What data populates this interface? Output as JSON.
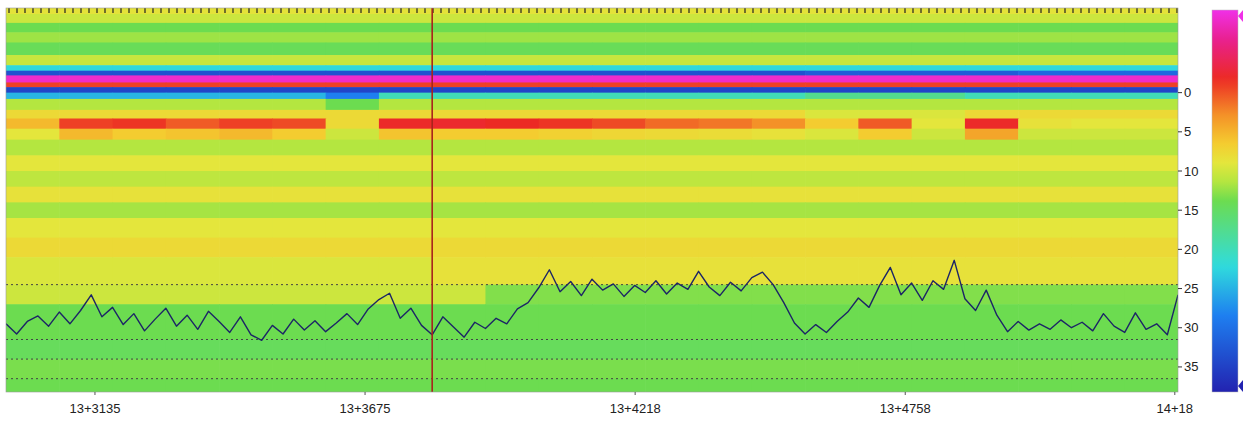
{
  "chart_data": {
    "type": "heatmap",
    "xlim": [
      0,
      22
    ],
    "xticks": [
      {
        "value": 1.67,
        "label": "13+3135"
      },
      {
        "value": 6.74,
        "label": "13+3675"
      },
      {
        "value": 11.81,
        "label": "13+4218"
      },
      {
        "value": 16.88,
        "label": "13+4758"
      },
      {
        "value": 21.94,
        "label": "14+18"
      }
    ],
    "ylim": [
      -10.8,
      38.2
    ],
    "yticks": [
      0,
      5,
      10,
      15,
      20,
      25,
      30,
      35
    ],
    "color_range": [
      -1,
      1
    ],
    "row_edges": [
      -10.8,
      -8.9,
      -7.7,
      -6.4,
      -4.8,
      -3.5,
      -2.8,
      -2.2,
      -1.3,
      -0.7,
      0.0,
      0.8,
      2.2,
      3.3,
      4.6,
      6.0,
      8.0,
      10.0,
      12.0,
      14.0,
      16.0,
      18.5,
      21.0,
      24.5,
      27.0,
      31.5,
      34.0,
      36.5,
      38.2
    ],
    "cells": [
      [
        0.15,
        0.15,
        0.15,
        0.15,
        0.15,
        0.15,
        0.15,
        0.15,
        0.15,
        0.15,
        0.15,
        0.15,
        0.15,
        0.15,
        0.15,
        0.15,
        0.15,
        0.15,
        0.15,
        0.15,
        0.15,
        0.15
      ],
      [
        0,
        0,
        0,
        0,
        0,
        0,
        0,
        0,
        0,
        0,
        0,
        0,
        0,
        0,
        0,
        0,
        0,
        0,
        0,
        0,
        0,
        0
      ],
      [
        0.07,
        0.07,
        0.07,
        0.07,
        0.07,
        0.07,
        0.07,
        0.07,
        0.07,
        0.07,
        0.07,
        0.07,
        0.07,
        0.07,
        0.07,
        0.07,
        0.07,
        0.07,
        0.07,
        0.07,
        0.07,
        0.07
      ],
      [
        -0.02,
        -0.02,
        -0.02,
        -0.02,
        -0.02,
        -0.02,
        -0.02,
        -0.02,
        -0.02,
        -0.02,
        -0.02,
        -0.02,
        -0.02,
        -0.02,
        -0.02,
        -0.02,
        -0.02,
        -0.02,
        -0.02,
        -0.02,
        -0.02,
        -0.02
      ],
      [
        0.14,
        0.14,
        0.14,
        0.14,
        0.14,
        0.14,
        0.14,
        0.14,
        0.14,
        0.14,
        0.14,
        0.14,
        0.14,
        0.14,
        0.14,
        0.14,
        0.14,
        0.14,
        0.14,
        0.14,
        0.14,
        0.14
      ],
      [
        -0.35,
        -0.35,
        -0.35,
        -0.35,
        -0.35,
        -0.35,
        -0.35,
        -0.35,
        -0.35,
        -0.35,
        -0.35,
        -0.35,
        -0.35,
        -0.35,
        -0.35,
        -0.35,
        -0.35,
        -0.35,
        -0.35,
        -0.35,
        -0.35,
        -0.35
      ],
      [
        -0.8,
        -0.8,
        -0.8,
        -0.8,
        -0.8,
        -0.8,
        -0.8,
        -0.8,
        -0.8,
        -0.8,
        -0.8,
        -0.8,
        -0.8,
        -0.8,
        -0.8,
        -0.75,
        -0.75,
        -0.75,
        -0.75,
        -0.7,
        -0.7,
        -0.7
      ],
      [
        0.95,
        0.95,
        0.95,
        0.95,
        0.95,
        0.95,
        0.95,
        0.95,
        0.95,
        0.95,
        0.95,
        0.95,
        0.95,
        0.95,
        0.95,
        0.95,
        0.95,
        0.95,
        0.95,
        0.95,
        0.95,
        0.95
      ],
      [
        0.6,
        0.6,
        0.6,
        0.6,
        0.6,
        0.6,
        0.6,
        0.6,
        0.6,
        0.6,
        0.6,
        0.6,
        0.6,
        0.6,
        0.6,
        0.6,
        0.6,
        0.6,
        0.6,
        0.6,
        0.6,
        0.6
      ],
      [
        -0.85,
        -0.85,
        -0.85,
        -0.85,
        -0.85,
        -0.85,
        -0.85,
        -0.85,
        -0.85,
        -0.85,
        -0.85,
        -0.85,
        -0.85,
        -0.85,
        -0.85,
        -0.85,
        -0.85,
        -0.85,
        -0.85,
        -0.85,
        -0.85,
        -0.85
      ],
      [
        -0.45,
        -0.45,
        -0.45,
        -0.45,
        -0.45,
        -0.45,
        -0.6,
        -0.25,
        -0.25,
        -0.25,
        -0.25,
        -0.25,
        -0.25,
        -0.25,
        -0.25,
        -0.15,
        -0.15,
        -0.15,
        -0.25,
        -0.25,
        -0.25,
        -0.25
      ],
      [
        0.1,
        0.1,
        0.1,
        0.1,
        0.1,
        0.1,
        0,
        0.1,
        0.1,
        0.1,
        0.1,
        0.1,
        0.1,
        0.1,
        0.1,
        0.1,
        0.1,
        0.1,
        0.1,
        0.1,
        0.1,
        0.1
      ],
      [
        0.25,
        0.25,
        0.25,
        0.25,
        0.25,
        0.25,
        0.25,
        0.25,
        0.25,
        0.25,
        0.25,
        0.25,
        0.25,
        0.25,
        0.25,
        0.18,
        0.18,
        0.18,
        0.25,
        0.25,
        0.25,
        0.25
      ],
      [
        0.35,
        0.6,
        0.62,
        0.55,
        0.6,
        0.58,
        0.25,
        0.65,
        0.66,
        0.64,
        0.62,
        0.58,
        0.52,
        0.5,
        0.45,
        0.3,
        0.55,
        0.2,
        0.65,
        0.22,
        0.2,
        0.2
      ],
      [
        0.2,
        0.35,
        0.3,
        0.32,
        0.35,
        0.3,
        0.15,
        0.32,
        0.3,
        0.3,
        0.28,
        0.26,
        0.25,
        0.24,
        0.22,
        0.18,
        0.3,
        0.15,
        0.4,
        0.15,
        0.15,
        0.15
      ],
      [
        0.1,
        0.1,
        0.1,
        0.1,
        0.1,
        0.1,
        0.1,
        0.1,
        0.1,
        0.1,
        0.1,
        0.1,
        0.1,
        0.1,
        0.1,
        0.1,
        0.1,
        0.1,
        0.1,
        0.1,
        0.1,
        0.1
      ],
      [
        0.2,
        0.2,
        0.2,
        0.2,
        0.2,
        0.2,
        0.2,
        0.2,
        0.2,
        0.2,
        0.2,
        0.2,
        0.2,
        0.2,
        0.2,
        0.2,
        0.2,
        0.2,
        0.2,
        0.2,
        0.2,
        0.2
      ],
      [
        0.12,
        0.12,
        0.12,
        0.12,
        0.12,
        0.12,
        0.12,
        0.12,
        0.12,
        0.12,
        0.12,
        0.12,
        0.12,
        0.12,
        0.12,
        0.12,
        0.12,
        0.12,
        0.12,
        0.12,
        0.12,
        0.12
      ],
      [
        0.22,
        0.22,
        0.22,
        0.22,
        0.22,
        0.22,
        0.22,
        0.22,
        0.22,
        0.22,
        0.22,
        0.22,
        0.22,
        0.22,
        0.22,
        0.22,
        0.22,
        0.22,
        0.22,
        0.22,
        0.22,
        0.22
      ],
      [
        0.08,
        0.08,
        0.08,
        0.08,
        0.08,
        0.08,
        0.08,
        0.08,
        0.08,
        0.08,
        0.08,
        0.08,
        0.08,
        0.08,
        0.08,
        0.08,
        0.08,
        0.08,
        0.08,
        0.08,
        0.08,
        0.08
      ],
      [
        0.2,
        0.2,
        0.2,
        0.2,
        0.2,
        0.2,
        0.2,
        0.2,
        0.2,
        0.2,
        0.2,
        0.2,
        0.2,
        0.2,
        0.2,
        0.2,
        0.2,
        0.2,
        0.2,
        0.2,
        0.2,
        0.2
      ],
      [
        0.25,
        0.25,
        0.25,
        0.25,
        0.25,
        0.25,
        0.25,
        0.25,
        0.25,
        0.25,
        0.25,
        0.25,
        0.25,
        0.25,
        0.25,
        0.25,
        0.25,
        0.25,
        0.25,
        0.25,
        0.25,
        0.25
      ],
      [
        0.18,
        0.18,
        0.18,
        0.18,
        0.18,
        0.18,
        0.18,
        0.18,
        0.22,
        0.22,
        0.22,
        0.22,
        0.22,
        0.22,
        0.22,
        0.22,
        0.22,
        0.22,
        0.22,
        0.22,
        0.22,
        0.22
      ],
      [
        0.15,
        0.15,
        0.15,
        0.15,
        0.15,
        0.15,
        0.15,
        0.15,
        0.15,
        0.03,
        0.03,
        0.03,
        0.03,
        0.03,
        0.03,
        0.03,
        0.03,
        0.03,
        0.03,
        0.03,
        0.03,
        0.03
      ],
      [
        0,
        0,
        0,
        0,
        0,
        0,
        0,
        0,
        0,
        0,
        0,
        0,
        0,
        0,
        0,
        0,
        0,
        0,
        0,
        0,
        0,
        0
      ],
      [
        -0.03,
        -0.03,
        -0.03,
        -0.03,
        -0.03,
        -0.03,
        -0.03,
        -0.03,
        -0.03,
        -0.03,
        -0.03,
        -0.03,
        -0.03,
        -0.03,
        -0.03,
        -0.03,
        -0.03,
        -0.03,
        -0.03,
        -0.03,
        -0.03,
        -0.03
      ],
      [
        0.02,
        0.02,
        0.02,
        0.02,
        0.02,
        0.02,
        0.02,
        0.02,
        0.02,
        0.02,
        0.02,
        0.02,
        0.02,
        0.02,
        0.02,
        0.02,
        0.02,
        0.02,
        0.02,
        0.02,
        0.02,
        0.02
      ],
      [
        0,
        0,
        0,
        0,
        0,
        0,
        0,
        0,
        0,
        0,
        0,
        0,
        0,
        0,
        0,
        0,
        0,
        0,
        0,
        0,
        0,
        0
      ]
    ],
    "guide_lines": [
      24.5,
      31.5,
      34,
      36.5
    ],
    "cursor_x": 8,
    "series": [
      {
        "type": "line",
        "color": "#1c2566",
        "x": [
          0,
          0.2,
          0.4,
          0.6,
          0.8,
          1,
          1.2,
          1.4,
          1.6,
          1.8,
          2,
          2.2,
          2.4,
          2.6,
          2.8,
          3,
          3.2,
          3.4,
          3.6,
          3.8,
          4,
          4.2,
          4.4,
          4.6,
          4.8,
          5,
          5.2,
          5.4,
          5.6,
          5.8,
          6,
          6.2,
          6.4,
          6.6,
          6.8,
          7,
          7.2,
          7.4,
          7.6,
          7.8,
          8,
          8.2,
          8.4,
          8.6,
          8.8,
          9,
          9.2,
          9.4,
          9.6,
          9.8,
          10,
          10.2,
          10.4,
          10.6,
          10.8,
          11,
          11.2,
          11.4,
          11.6,
          11.8,
          12,
          12.2,
          12.4,
          12.6,
          12.8,
          13,
          13.2,
          13.4,
          13.6,
          13.8,
          14,
          14.2,
          14.4,
          14.6,
          14.8,
          15,
          15.2,
          15.4,
          15.6,
          15.8,
          16,
          16.2,
          16.4,
          16.6,
          16.8,
          17,
          17.2,
          17.4,
          17.6,
          17.8,
          18,
          18.2,
          18.4,
          18.6,
          18.8,
          19,
          19.2,
          19.4,
          19.6,
          19.8,
          20,
          20.2,
          20.4,
          20.6,
          20.8,
          21,
          21.2,
          21.4,
          21.6,
          21.8,
          22
        ],
        "values": [
          29.5,
          30.8,
          29.2,
          28.5,
          29.8,
          28.0,
          29.5,
          27.8,
          25.8,
          28.6,
          27.4,
          29.6,
          28.2,
          30.4,
          28.9,
          27.5,
          29.8,
          28.4,
          30.2,
          27.9,
          29.2,
          30.6,
          28.6,
          30.9,
          31.6,
          29.7,
          30.8,
          28.9,
          30.3,
          29.1,
          30.5,
          29.4,
          28.2,
          29.6,
          27.6,
          26.4,
          25.6,
          28.8,
          27.5,
          29.7,
          30.9,
          28.6,
          29.9,
          31.2,
          29.3,
          30.1,
          28.8,
          29.5,
          27.6,
          26.8,
          24.9,
          22.6,
          25.4,
          24.1,
          25.9,
          23.8,
          25.2,
          24.4,
          26.0,
          24.6,
          25.5,
          24.0,
          25.7,
          24.3,
          25.1,
          22.8,
          24.8,
          25.9,
          24.2,
          25.3,
          23.6,
          22.9,
          24.5,
          26.8,
          29.4,
          30.8,
          29.6,
          30.6,
          29.2,
          28.0,
          26.2,
          27.4,
          24.6,
          22.3,
          25.8,
          24.3,
          26.5,
          24.0,
          25.1,
          21.4,
          26.3,
          27.8,
          25.2,
          28.4,
          30.5,
          29.2,
          30.3,
          29.5,
          30.2,
          29.0,
          30.0,
          29.3,
          30.4,
          28.2,
          29.8,
          30.6,
          28.1,
          30.2,
          29.5,
          30.9,
          25.8
        ]
      }
    ]
  }
}
